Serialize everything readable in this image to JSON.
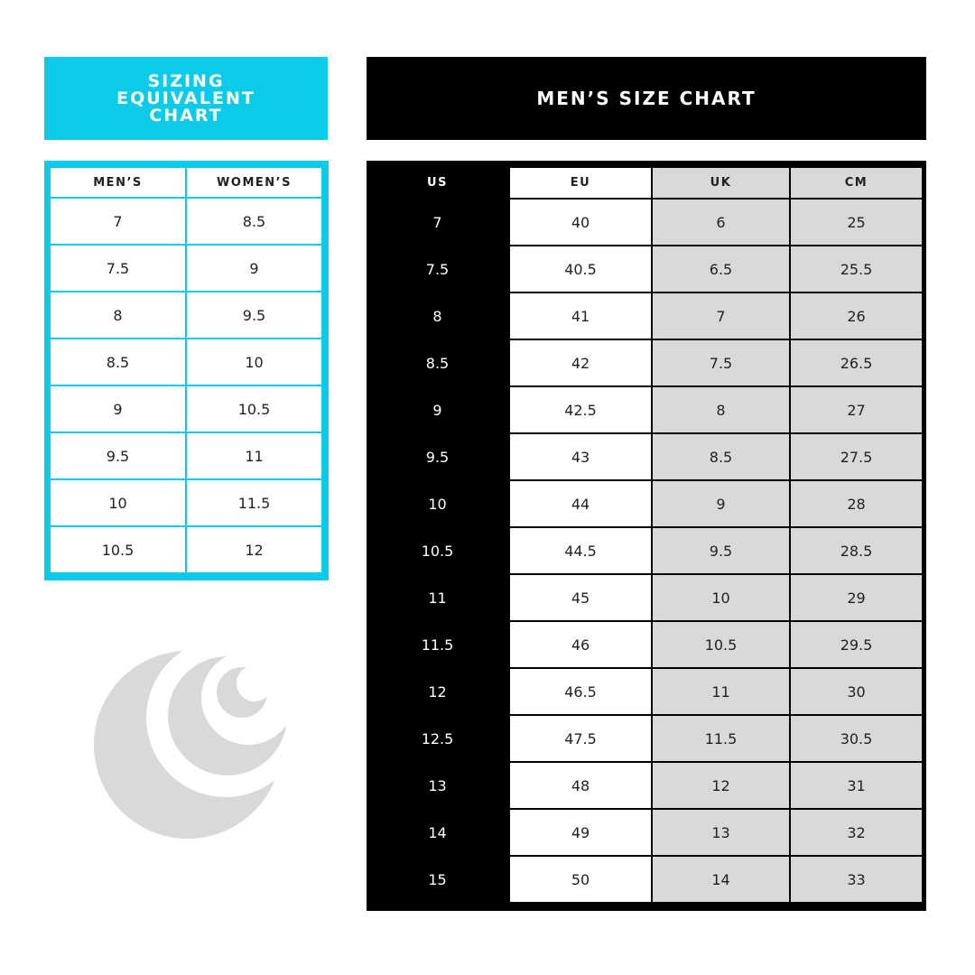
{
  "equivalent_chart": {
    "title": "SIZING\nEQUIVALENT\nCHART",
    "headers": [
      "MEN’S",
      "WOMEN’S"
    ],
    "rows": [
      [
        "7",
        "8.5"
      ],
      [
        "7.5",
        "9"
      ],
      [
        "8",
        "9.5"
      ],
      [
        "8.5",
        "10"
      ],
      [
        "9",
        "10.5"
      ],
      [
        "9.5",
        "11"
      ],
      [
        "10",
        "11.5"
      ],
      [
        "10.5",
        "12"
      ]
    ]
  },
  "mens_chart": {
    "title": "MEN’S SIZE CHART",
    "headers": [
      "US",
      "EU",
      "UK",
      "CM"
    ],
    "rows": [
      [
        "7",
        "40",
        "6",
        "25"
      ],
      [
        "7.5",
        "40.5",
        "6.5",
        "25.5"
      ],
      [
        "8",
        "41",
        "7",
        "26"
      ],
      [
        "8.5",
        "42",
        "7.5",
        "26.5"
      ],
      [
        "9",
        "42.5",
        "8",
        "27"
      ],
      [
        "9.5",
        "43",
        "8.5",
        "27.5"
      ],
      [
        "10",
        "44",
        "9",
        "28"
      ],
      [
        "10.5",
        "44.5",
        "9.5",
        "28.5"
      ],
      [
        "11",
        "45",
        "10",
        "29"
      ],
      [
        "11.5",
        "46",
        "10.5",
        "29.5"
      ],
      [
        "12",
        "46.5",
        "11",
        "30"
      ],
      [
        "12.5",
        "47.5",
        "11.5",
        "30.5"
      ],
      [
        "13",
        "48",
        "12",
        "31"
      ],
      [
        "14",
        "49",
        "13",
        "32"
      ],
      [
        "15",
        "50",
        "14",
        "33"
      ]
    ]
  },
  "logo": {
    "icon": "crescent-moons-logo",
    "color": "#d9d9d9"
  },
  "colors": {
    "accent": "#0ccbe8",
    "black": "#000000",
    "gray_cell": "#d9d9d9"
  }
}
